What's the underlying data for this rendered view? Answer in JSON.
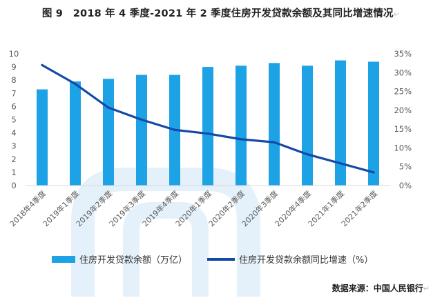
{
  "title": "图 9　2018 年 4 季度-2021 年 2 季度住房开发贷款余额及其同比增速情况",
  "title_mark": "↵",
  "source": "数据来源：中国人民银行",
  "source_mark": "↵",
  "colors": {
    "bar": "#1ea2e6",
    "line": "#1549a8",
    "axis_text": "#595959",
    "axis_line": "#d9d9d9",
    "watermark": "#e4f1fa"
  },
  "chart_data": {
    "type": "bar+line",
    "categories": [
      "2018年4季度",
      "2019年1季度",
      "2019年2季度",
      "2019年3季度",
      "2019年4季度",
      "2020年1季度",
      "2020年2季度",
      "2020年3季度",
      "2020年4季度",
      "2021年1季度",
      "2021年2季度"
    ],
    "series": [
      {
        "name": "住房开发贷款余额（万亿）",
        "type": "bar",
        "axis": "left",
        "values": [
          7.3,
          7.9,
          8.1,
          8.4,
          8.4,
          9.0,
          9.1,
          9.3,
          9.1,
          9.5,
          9.4
        ]
      },
      {
        "name": "住房开发贷款余额同比增速（%）",
        "type": "line",
        "axis": "right",
        "values": [
          32.0,
          27.0,
          20.7,
          17.5,
          14.8,
          13.8,
          12.3,
          11.5,
          8.3,
          5.9,
          3.5
        ]
      }
    ],
    "y_left": {
      "ticks": [
        "0",
        "1",
        "2",
        "3",
        "4",
        "5",
        "6",
        "7",
        "8",
        "9",
        "10"
      ],
      "min": 0,
      "max": 10
    },
    "y_right": {
      "ticks": [
        "0%",
        "5%",
        "10%",
        "15%",
        "20%",
        "25%",
        "30%",
        "35%"
      ],
      "min": 0,
      "max": 35
    },
    "grid": false,
    "legend_position": "bottom"
  }
}
